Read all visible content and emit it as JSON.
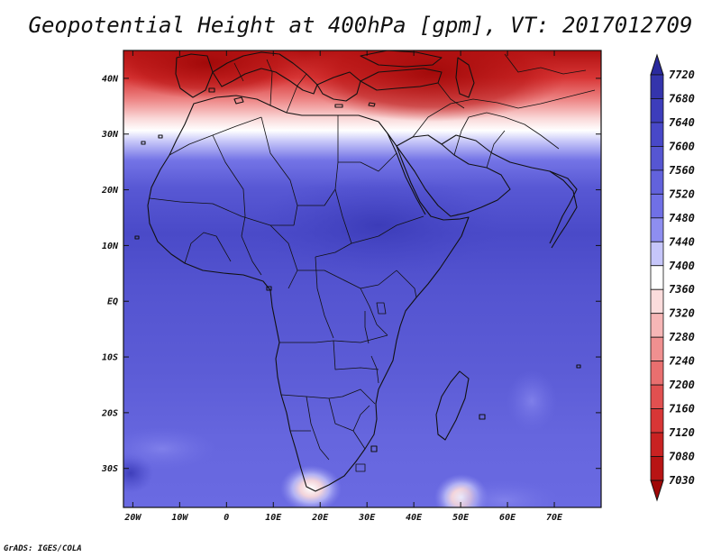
{
  "title": "Geopotential Height at 400hPa [gpm], VT: 2017012709",
  "credit": "GrADS: IGES/COLA",
  "lat_ticks": [
    {
      "lat": 40,
      "label": "40N"
    },
    {
      "lat": 30,
      "label": "30N"
    },
    {
      "lat": 20,
      "label": "20N"
    },
    {
      "lat": 10,
      "label": "10N"
    },
    {
      "lat": 0,
      "label": "EQ"
    },
    {
      "lat": -10,
      "label": "10S"
    },
    {
      "lat": -20,
      "label": "20S"
    },
    {
      "lat": -30,
      "label": "30S"
    }
  ],
  "lon_ticks": [
    {
      "lon": -20,
      "label": "20W"
    },
    {
      "lon": -10,
      "label": "10W"
    },
    {
      "lon": 0,
      "label": "0"
    },
    {
      "lon": 10,
      "label": "10E"
    },
    {
      "lon": 20,
      "label": "20E"
    },
    {
      "lon": 30,
      "label": "30E"
    },
    {
      "lon": 40,
      "label": "40E"
    },
    {
      "lon": 50,
      "label": "50E"
    },
    {
      "lon": 60,
      "label": "60E"
    },
    {
      "lon": 70,
      "label": "70E"
    }
  ],
  "extent": {
    "lon": [
      -22,
      80
    ],
    "lat": [
      -37,
      45
    ]
  },
  "colorbar": {
    "levels": [
      "7720",
      "7680",
      "7640",
      "7600",
      "7560",
      "7520",
      "7480",
      "7440",
      "7400",
      "7360",
      "7320",
      "7280",
      "7240",
      "7200",
      "7160",
      "7120",
      "7080",
      "7030"
    ],
    "colors": [
      "#2a2a9e",
      "#3434ac",
      "#3d3dbb",
      "#4848c8",
      "#5656d2",
      "#6262dc",
      "#7070e6",
      "#8e8ef0",
      "#c6c6fa",
      "#ffffff",
      "#fbdcdc",
      "#f6b6b6",
      "#f09090",
      "#e96f6f",
      "#e15050",
      "#d83636",
      "#c92222",
      "#b81414",
      "#a00808"
    ]
  }
}
